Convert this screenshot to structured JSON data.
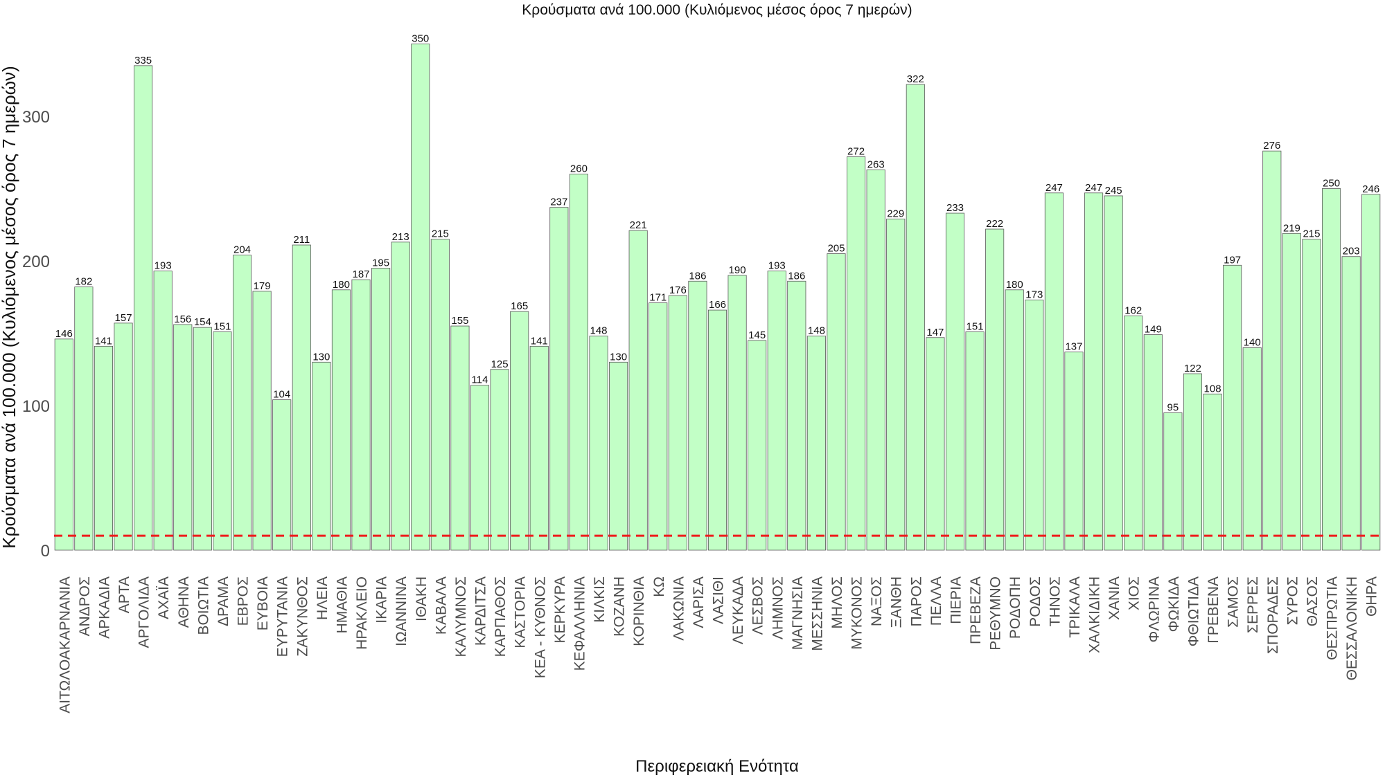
{
  "chart_data": {
    "type": "bar",
    "title": "Κρούσματα ανά 100.000 (Κυλιόμενος μέσος όρος 7 ημερών)",
    "xlabel": "Περιφερειακή Ενότητα",
    "ylabel": "Κρούσματα ανά 100.000 (Κυλιόμενος μέσος όρος 7 ημερών)",
    "ylim": [
      0,
      350
    ],
    "yticks": [
      0,
      100,
      200,
      300
    ],
    "reference_line": 10,
    "categories": [
      "ΑΙΤΩΛΟΑΚΑΡΝΑΝΙΑ",
      "ΑΝΔΡΟΣ",
      "ΑΡΚΑΔΙΑ",
      "ΑΡΤΑ",
      "ΑΡΓΟΛΙΔΑ",
      "ΑΧΑΪΑ",
      "ΑΘΗΝΑ",
      "ΒΟΙΩΤΙΑ",
      "ΔΡΑΜΑ",
      "ΕΒΡΟΣ",
      "ΕΥΒΟΙΑ",
      "ΕΥΡΥΤΑΝΙΑ",
      "ΖΑΚΥΝΘΟΣ",
      "ΗΛΕΙΑ",
      "ΗΜΑΘΙΑ",
      "ΗΡΑΚΛΕΙΟ",
      "ΙΚΑΡΙΑ",
      "ΙΩΑΝΝΙΝΑ",
      "ΙΘΑΚΗ",
      "ΚΑΒΑΛΑ",
      "ΚΑΛΥΜΝΟΣ",
      "ΚΑΡΔΙΤΣΑ",
      "ΚΑΡΠΑΘΟΣ",
      "ΚΑΣΤΟΡΙΑ",
      "ΚΕΑ - ΚΥΘΝΟΣ",
      "ΚΕΡΚΥΡΑ",
      "ΚΕΦΑΛΛΗΝΙΑ",
      "ΚΙΛΚΙΣ",
      "ΚΟΖΑΝΗ",
      "ΚΟΡΙΝΘΙΑ",
      "ΚΩ",
      "ΛΑΚΩΝΙΑ",
      "ΛΑΡΙΣΑ",
      "ΛΑΣΙΘΙ",
      "ΛΕΥΚΑΔΑ",
      "ΛΕΣΒΟΣ",
      "ΛΗΜΝΟΣ",
      "ΜΑΓΝΗΣΙΑ",
      "ΜΕΣΣΗΝΙΑ",
      "ΜΗΛΟΣ",
      "ΜΥΚΟΝΟΣ",
      "ΝΑΞΟΣ",
      "ΞΑΝΘΗ",
      "ΠΑΡΟΣ",
      "ΠΕΛΛΑ",
      "ΠΙΕΡΙΑ",
      "ΠΡΕΒΕΖΑ",
      "ΡΕΘΥΜΝΟ",
      "ΡΟΔΟΠΗ",
      "ΡΟΔΟΣ",
      "ΤΗΝΟΣ",
      "ΤΡΙΚΑΛΑ",
      "ΧΑΛΚΙΔΙΚΗ",
      "ΧΑΝΙΑ",
      "ΧΙΟΣ",
      "ΦΛΩΡΙΝΑ",
      "ΦΩΚΙΔΑ",
      "ΦΘΙΩΤΙΔΑ",
      "ΓΡΕΒΕΝΑ",
      "ΣΑΜΟΣ",
      "ΣΕΡΡΕΣ",
      "ΣΠΟΡΑΔΕΣ",
      "ΣΥΡΟΣ",
      "ΘΑΣΟΣ",
      "ΘΕΣΠΡΩΤΙΑ",
      "ΘΕΣΣΑΛΟΝΙΚΗ",
      "ΘΗΡΑ"
    ],
    "values": [
      146,
      182,
      141,
      157,
      335,
      193,
      156,
      154,
      151,
      204,
      179,
      104,
      211,
      130,
      180,
      187,
      195,
      213,
      350,
      215,
      155,
      114,
      125,
      165,
      141,
      237,
      260,
      148,
      130,
      221,
      171,
      176,
      186,
      166,
      190,
      145,
      193,
      186,
      148,
      205,
      272,
      263,
      229,
      322,
      147,
      233,
      151,
      222,
      180,
      173,
      247,
      137,
      247,
      245,
      162,
      149,
      95,
      122,
      108,
      197,
      140,
      276,
      219,
      215,
      250,
      203,
      246
    ],
    "colors": {
      "bar_fill": "#c2ffc6",
      "bar_stroke": "#595959",
      "reference_line": "#ee1c1c",
      "text": "#111111",
      "tick_text": "#4d4d4d"
    }
  }
}
